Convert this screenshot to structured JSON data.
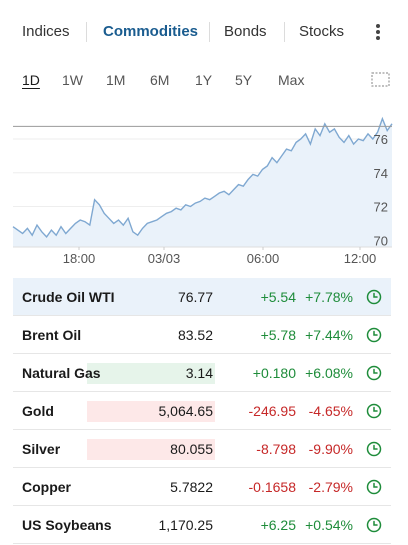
{
  "tabs": {
    "items": [
      {
        "label": "Indices",
        "active": false
      },
      {
        "label": "Commodities",
        "active": true
      },
      {
        "label": "Bonds",
        "active": false
      },
      {
        "label": "Stocks",
        "active": false
      }
    ],
    "more_icon": "vertical-ellipsis"
  },
  "ranges": {
    "items": [
      "1D",
      "1W",
      "1M",
      "6M",
      "1Y",
      "5Y",
      "Max"
    ],
    "active": "1D",
    "expand_icon": "expand-chart-icon"
  },
  "chart_data": {
    "type": "area",
    "x_labels": [
      "18:00",
      "03/03",
      "06:00",
      "12:00"
    ],
    "y_ticks": [
      70,
      72,
      74,
      76
    ],
    "ylim": [
      69.6,
      77.6
    ],
    "reference_value": 76.75,
    "series": [
      {
        "values": [
          70.8,
          70.6,
          70.4,
          70.7,
          70.3,
          70.9,
          70.5,
          70.2,
          70.6,
          70.3,
          70.8,
          70.4,
          70.7,
          71.0,
          71.2,
          71.1,
          70.9,
          72.4,
          72.1,
          71.6,
          71.3,
          71.0,
          71.2,
          70.9,
          71.3,
          70.5,
          70.3,
          70.7,
          71.0,
          71.1,
          71.2,
          71.4,
          71.6,
          71.7,
          71.9,
          71.8,
          72.1,
          72.0,
          72.2,
          72.3,
          72.5,
          72.4,
          72.6,
          72.8,
          72.9,
          72.7,
          73.0,
          73.3,
          73.2,
          73.6,
          73.9,
          73.8,
          74.2,
          74.4,
          74.9,
          74.6,
          75.0,
          75.4,
          75.3,
          75.8,
          76.0,
          76.3,
          75.7,
          76.6,
          76.2,
          76.9,
          76.4,
          76.6,
          76.1,
          75.8,
          76.2,
          75.7,
          76.0,
          75.9,
          76.3,
          76.0,
          76.4,
          77.2,
          76.5,
          76.9
        ]
      }
    ],
    "line_color": "#7fa8d1",
    "fill_color": "#eaf2fa"
  },
  "table": {
    "rows": [
      {
        "name": "Crude Oil WTI",
        "price": "76.77",
        "change": "+5.54",
        "pct": "+7.78%",
        "dir": "up",
        "flash": "",
        "selected": true
      },
      {
        "name": "Brent Oil",
        "price": "83.52",
        "change": "+5.78",
        "pct": "+7.44%",
        "dir": "up",
        "flash": "",
        "selected": false
      },
      {
        "name": "Natural Gas",
        "price": "3.14",
        "change": "+0.180",
        "pct": "+6.08%",
        "dir": "up",
        "flash": "up",
        "selected": false
      },
      {
        "name": "Gold",
        "price": "5,064.65",
        "change": "-246.95",
        "pct": "-4.65%",
        "dir": "down",
        "flash": "down",
        "selected": false
      },
      {
        "name": "Silver",
        "price": "80.055",
        "change": "-8.798",
        "pct": "-9.90%",
        "dir": "down",
        "flash": "down",
        "selected": false
      },
      {
        "name": "Copper",
        "price": "5.7822",
        "change": "-0.1658",
        "pct": "-2.79%",
        "dir": "down",
        "flash": "",
        "selected": false
      },
      {
        "name": "US Soybeans",
        "price": "1,170.25",
        "change": "+6.25",
        "pct": "+0.54%",
        "dir": "up",
        "flash": "",
        "selected": false
      }
    ],
    "row_icon": "clock-icon"
  },
  "colors": {
    "accent": "#1a5c8f",
    "up": "#1e8c3a",
    "down": "#c62828",
    "flash_up": "#e6f4ea",
    "flash_down": "#fde8e8"
  }
}
